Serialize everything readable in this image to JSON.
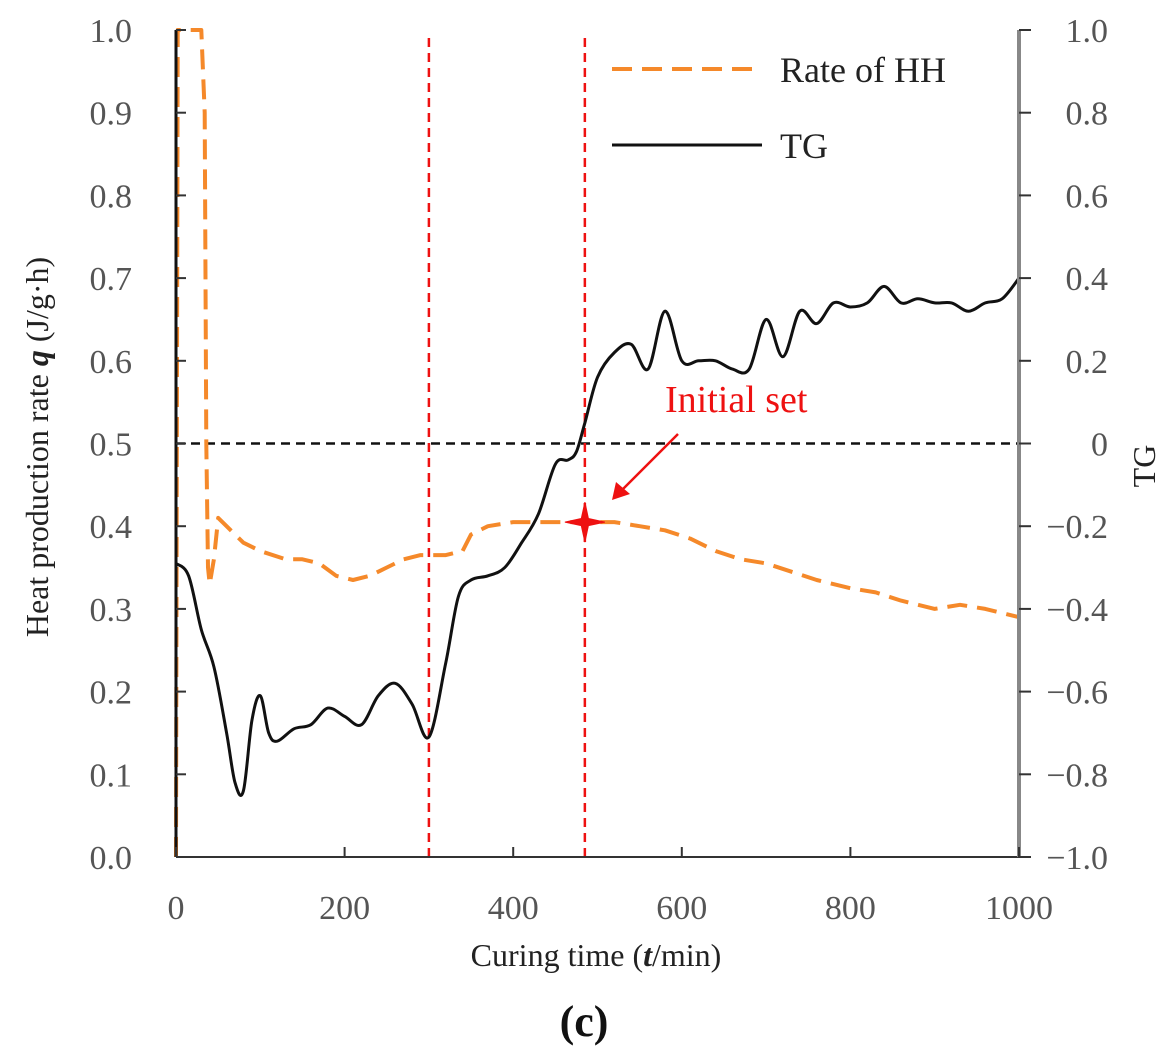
{
  "chart_data": {
    "type": "line",
    "title": "",
    "panel_label": "(c)",
    "xlabel": "Curing time (t/min)",
    "xlabel_parts": [
      "Curing time (",
      "t",
      "/min)"
    ],
    "ylabel_left": "Heat production rate q (J/g·h)",
    "ylabel_left_parts": [
      "Heat production rate ",
      "q",
      " (J/g·h)"
    ],
    "ylabel_right": "TG",
    "xlim": [
      0,
      1000
    ],
    "ylim_left": [
      0.0,
      1.0
    ],
    "ylim_right": [
      -1.0,
      1.0
    ],
    "x_ticks": [
      "0",
      "200",
      "400",
      "600",
      "800",
      "1000"
    ],
    "x_tick_values": [
      0,
      200,
      400,
      600,
      800,
      1000
    ],
    "y_left_ticks": [
      "0.0",
      "0.1",
      "0.2",
      "0.3",
      "0.4",
      "0.5",
      "0.6",
      "0.7",
      "0.8",
      "0.9",
      "1.0"
    ],
    "y_left_tick_values": [
      0.0,
      0.1,
      0.2,
      0.3,
      0.4,
      0.5,
      0.6,
      0.7,
      0.8,
      0.9,
      1.0
    ],
    "y_right_ticks": [
      "−1.0",
      "−0.8",
      "−0.6",
      "−0.4",
      "−0.2",
      "0",
      "0.2",
      "0.4",
      "0.6",
      "0.8",
      "1.0"
    ],
    "y_right_tick_values": [
      -1.0,
      -0.8,
      -0.6,
      -0.4,
      -0.2,
      0,
      0.2,
      0.4,
      0.6,
      0.8,
      1.0
    ],
    "legend_position": "top-right",
    "series": [
      {
        "name": "Rate of HH",
        "axis": "left",
        "style": "dashed",
        "color": "#f5892a",
        "x": [
          0,
          2,
          10,
          30,
          34,
          36,
          38,
          40,
          45,
          50,
          60,
          80,
          100,
          130,
          150,
          170,
          190,
          210,
          230,
          250,
          270,
          290,
          300,
          320,
          340,
          350,
          370,
          400,
          430,
          460,
          490,
          520,
          550,
          580,
          610,
          640,
          670,
          700,
          730,
          760,
          800,
          830,
          860,
          900,
          930,
          960,
          1000
        ],
        "values": [
          0.0,
          1.0,
          1.0,
          1.0,
          0.9,
          0.5,
          0.35,
          0.33,
          0.36,
          0.41,
          0.4,
          0.38,
          0.37,
          0.36,
          0.36,
          0.355,
          0.34,
          0.335,
          0.34,
          0.35,
          0.36,
          0.365,
          0.365,
          0.365,
          0.37,
          0.39,
          0.4,
          0.405,
          0.405,
          0.405,
          0.405,
          0.405,
          0.4,
          0.395,
          0.385,
          0.37,
          0.36,
          0.355,
          0.345,
          0.335,
          0.325,
          0.32,
          0.31,
          0.3,
          0.305,
          0.3,
          0.29
        ]
      },
      {
        "name": "TG",
        "axis": "right",
        "style": "solid",
        "color": "#111111",
        "x": [
          0,
          15,
          30,
          45,
          60,
          70,
          80,
          90,
          100,
          110,
          120,
          140,
          160,
          180,
          200,
          220,
          240,
          260,
          280,
          300,
          320,
          335,
          350,
          370,
          390,
          410,
          430,
          450,
          465,
          475,
          485,
          500,
          520,
          540,
          560,
          580,
          600,
          620,
          640,
          660,
          680,
          700,
          720,
          740,
          760,
          780,
          800,
          820,
          840,
          860,
          880,
          900,
          920,
          940,
          960,
          980,
          1000
        ],
        "values": [
          -0.29,
          -0.32,
          -0.45,
          -0.54,
          -0.7,
          -0.82,
          -0.84,
          -0.67,
          -0.61,
          -0.7,
          -0.72,
          -0.69,
          -0.68,
          -0.64,
          -0.66,
          -0.68,
          -0.61,
          -0.58,
          -0.63,
          -0.71,
          -0.53,
          -0.37,
          -0.33,
          -0.32,
          -0.3,
          -0.24,
          -0.17,
          -0.05,
          -0.04,
          -0.02,
          0.05,
          0.16,
          0.22,
          0.24,
          0.18,
          0.32,
          0.2,
          0.2,
          0.2,
          0.18,
          0.18,
          0.3,
          0.21,
          0.32,
          0.29,
          0.34,
          0.33,
          0.34,
          0.38,
          0.34,
          0.35,
          0.34,
          0.34,
          0.32,
          0.34,
          0.35,
          0.4
        ]
      }
    ],
    "reference_lines": [
      {
        "orientation": "horizontal",
        "axis": "right",
        "value": 0,
        "style": "dashed",
        "color": "#111111"
      },
      {
        "orientation": "vertical",
        "value": 300,
        "style": "dashed",
        "color": "#ee1111"
      },
      {
        "orientation": "vertical",
        "value": 485,
        "style": "dashed",
        "color": "#ee1111"
      }
    ],
    "annotations": [
      {
        "text": "Initial set",
        "target_x": 485,
        "target_y": 0.405,
        "axis": "left",
        "marker": "four-point-star",
        "color": "#ee1111"
      }
    ]
  }
}
